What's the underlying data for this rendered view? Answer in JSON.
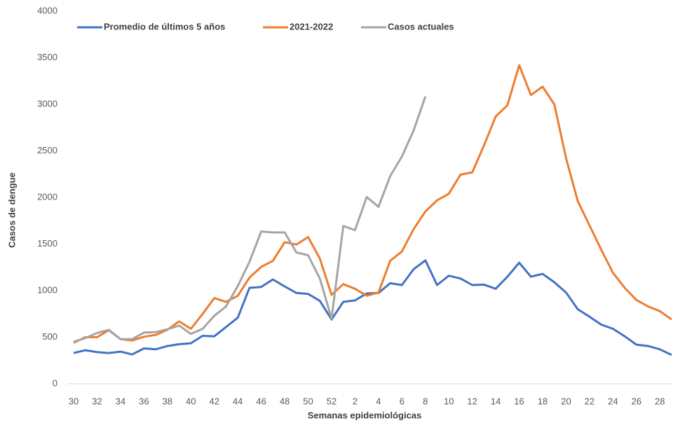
{
  "chart_data": {
    "type": "line",
    "x_label": "Semanas epidemiológicas",
    "y_label": "Casos de dengue",
    "categories": [
      "30",
      null,
      "32",
      null,
      "34",
      null,
      "36",
      null,
      "38",
      null,
      "40",
      null,
      "42",
      null,
      "44",
      null,
      "46",
      null,
      "48",
      null,
      "50",
      null,
      "52",
      null,
      "2",
      null,
      "4",
      null,
      "6",
      null,
      "8",
      null,
      "10",
      null,
      "12",
      null,
      "14",
      null,
      "16",
      null,
      "18",
      null,
      "20",
      null,
      "22",
      null,
      "24",
      null,
      "26",
      null,
      "28",
      null
    ],
    "series": [
      {
        "name": "Promedio de últimos 5 años",
        "color": "#4472c4",
        "values": [
          330,
          360,
          340,
          330,
          345,
          315,
          380,
          370,
          405,
          425,
          435,
          515,
          510,
          610,
          710,
          1030,
          1040,
          1120,
          1045,
          975,
          965,
          890,
          690,
          880,
          895,
          970,
          975,
          1080,
          1060,
          1230,
          1325,
          1060,
          1160,
          1130,
          1060,
          1065,
          1020,
          1150,
          1300,
          1150,
          1180,
          1090,
          980,
          800,
          720,
          635,
          590,
          510,
          420,
          405,
          370,
          310
        ]
      },
      {
        "name": "2021-2022",
        "color": "#ed7d31",
        "values": [
          440,
          500,
          500,
          575,
          480,
          465,
          505,
          525,
          580,
          670,
          590,
          750,
          920,
          880,
          945,
          1140,
          1255,
          1320,
          1520,
          1495,
          1575,
          1345,
          955,
          1070,
          1020,
          945,
          980,
          1320,
          1420,
          1660,
          1850,
          1970,
          2040,
          2245,
          2270,
          2560,
          2870,
          2990,
          3420,
          3100,
          3190,
          3000,
          2420,
          1960,
          1700,
          1440,
          1190,
          1030,
          900,
          830,
          780,
          690
        ]
      },
      {
        "name": "Casos actuales",
        "color": "#a5a5a5",
        "values": [
          450,
          490,
          545,
          580,
          480,
          480,
          550,
          555,
          585,
          625,
          535,
          590,
          730,
          830,
          1050,
          1310,
          1635,
          1625,
          1625,
          1410,
          1380,
          1130,
          700,
          1695,
          1650,
          2005,
          1900,
          2230,
          2440,
          2720,
          3085,
          null,
          null,
          null,
          null,
          null,
          null,
          null,
          null,
          null,
          null,
          null,
          null,
          null,
          null,
          null,
          null,
          null,
          null,
          null,
          null,
          null
        ]
      }
    ],
    "ylim": [
      0,
      4000
    ],
    "yticks": [
      0,
      500,
      1000,
      1500,
      2000,
      2500,
      3000,
      3500,
      4000
    ],
    "grid": false,
    "legend": "top-left"
  }
}
